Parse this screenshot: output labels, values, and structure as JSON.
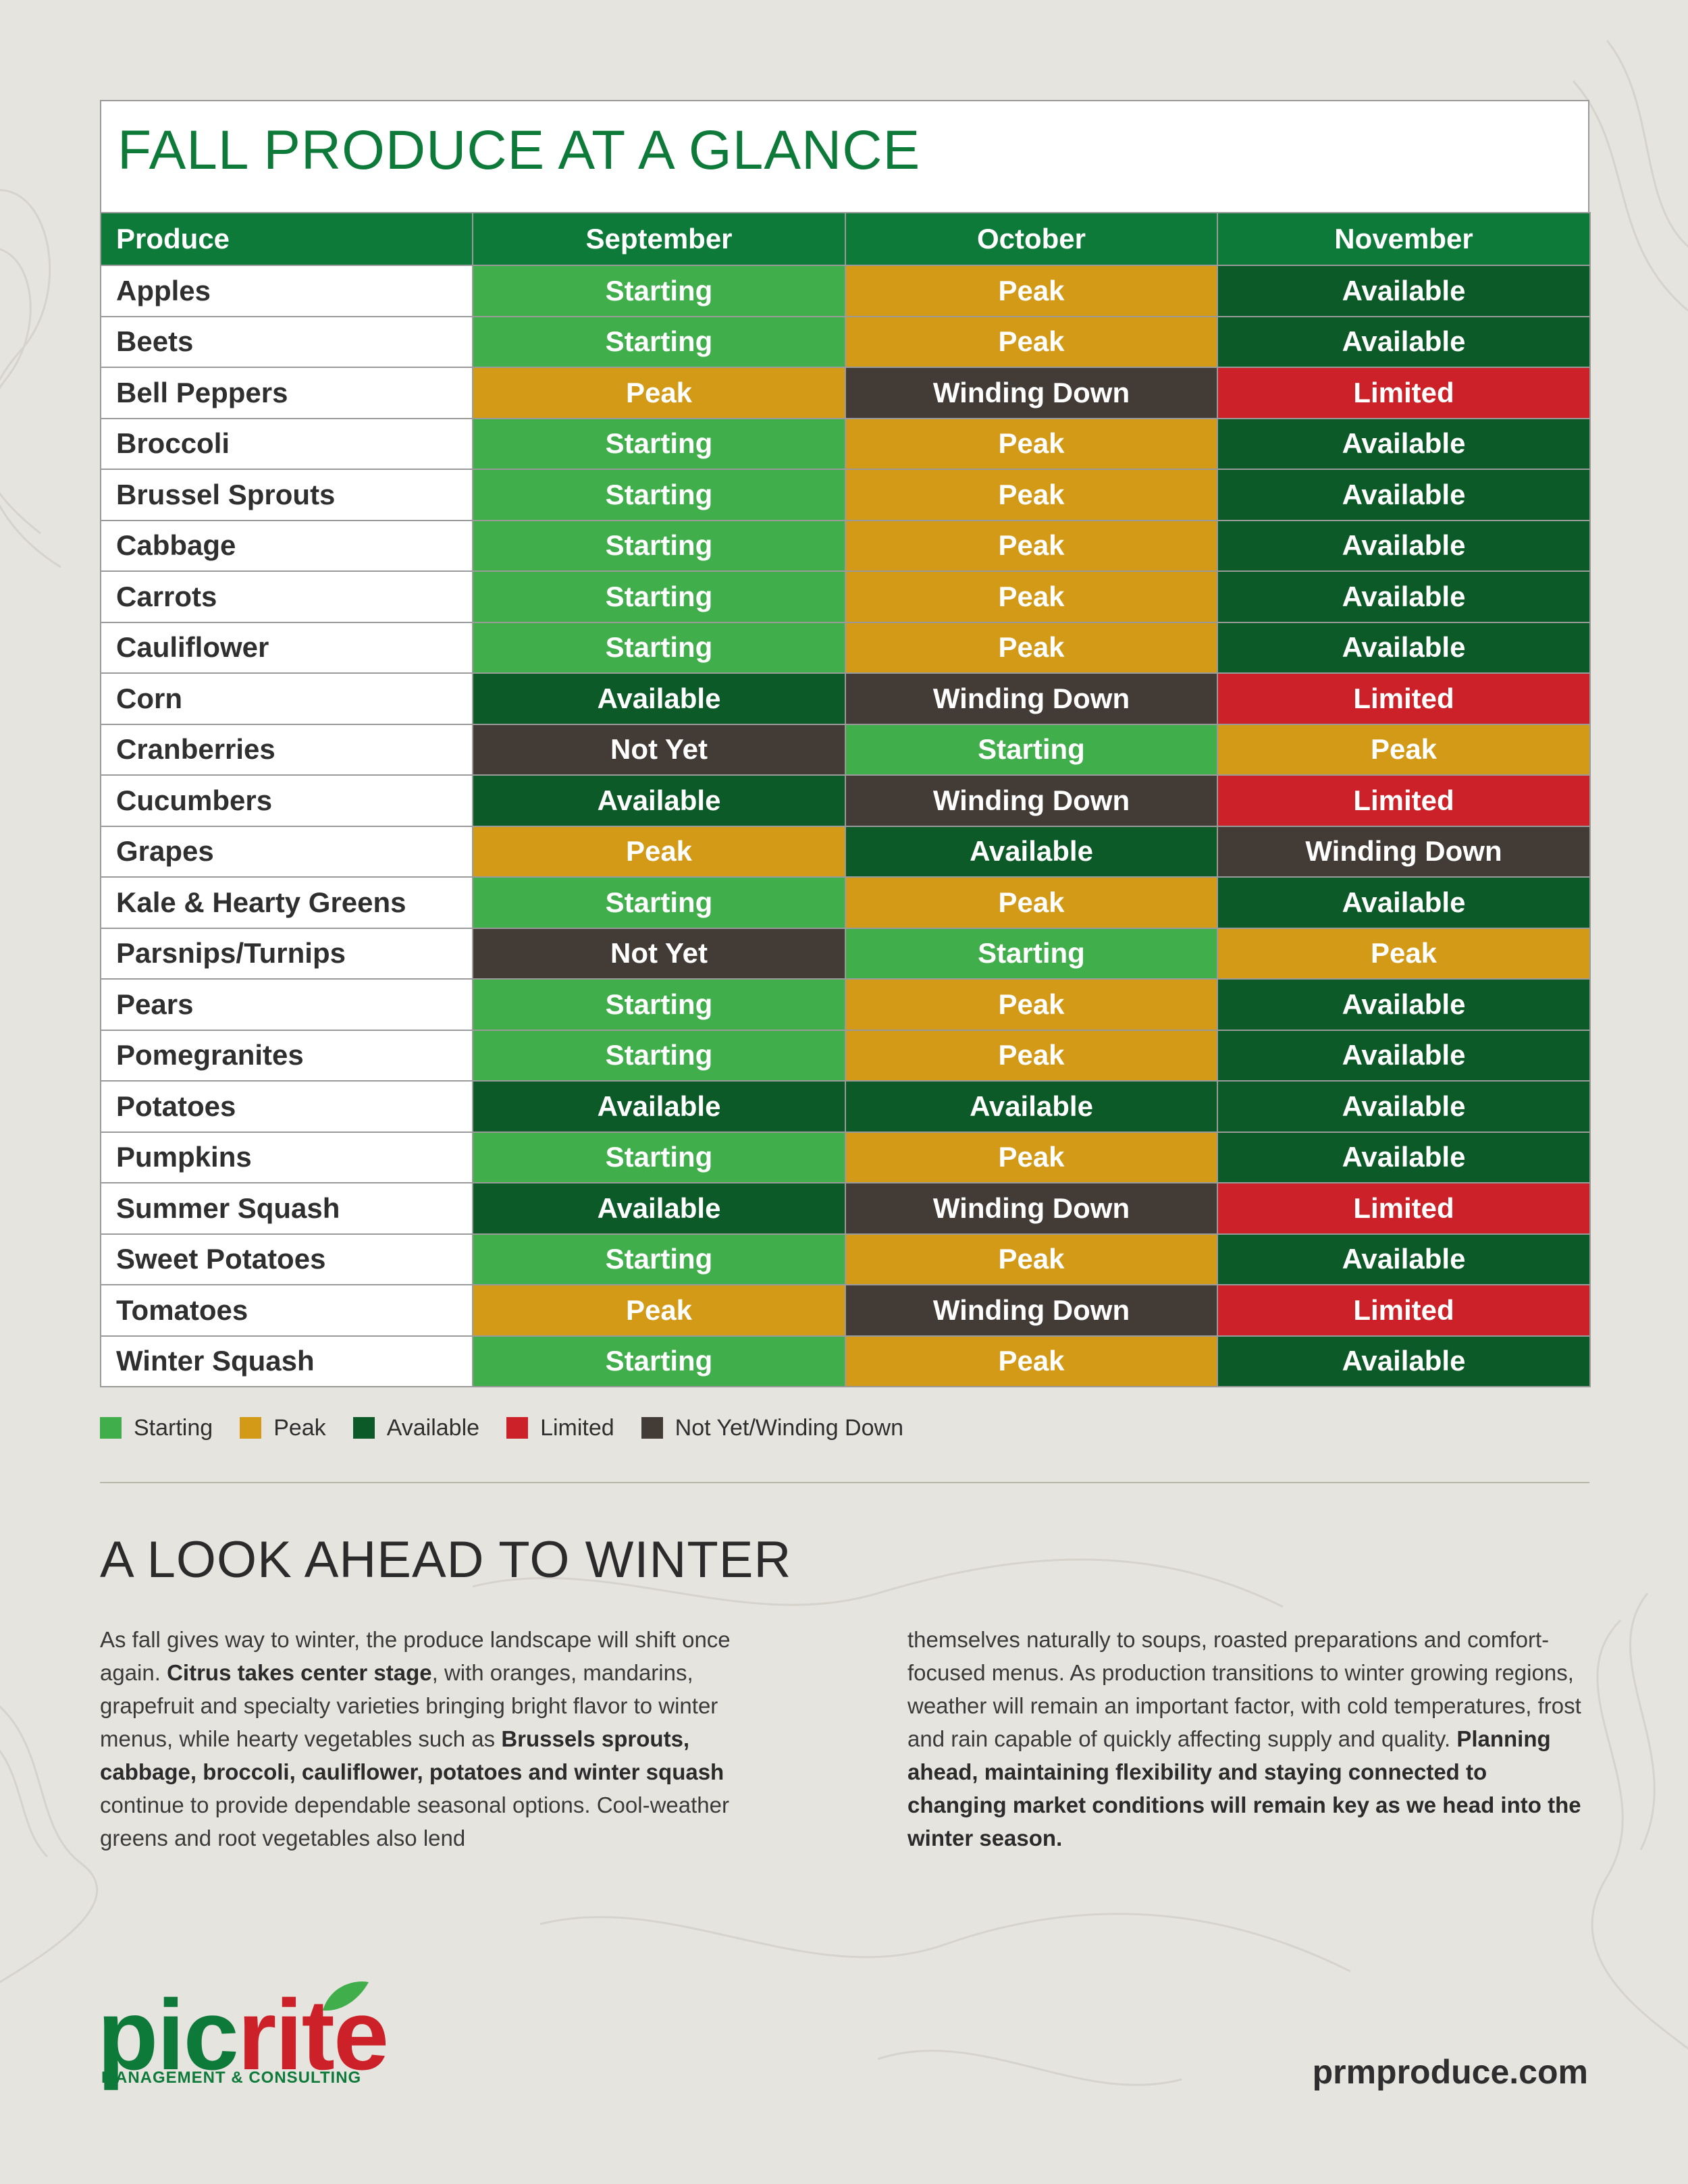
{
  "title": "FALL PRODUCE AT A GLANCE",
  "columns": [
    "Produce",
    "September",
    "October",
    "November"
  ],
  "rows": [
    {
      "name": "Apples",
      "sep": "Starting",
      "oct": "Peak",
      "nov": "Available"
    },
    {
      "name": "Beets",
      "sep": "Starting",
      "oct": "Peak",
      "nov": "Available"
    },
    {
      "name": "Bell Peppers",
      "sep": "Peak",
      "oct": "Winding Down",
      "nov": "Limited"
    },
    {
      "name": "Broccoli",
      "sep": "Starting",
      "oct": "Peak",
      "nov": "Available"
    },
    {
      "name": "Brussel Sprouts",
      "sep": "Starting",
      "oct": "Peak",
      "nov": "Available"
    },
    {
      "name": "Cabbage",
      "sep": "Starting",
      "oct": "Peak",
      "nov": "Available"
    },
    {
      "name": "Carrots",
      "sep": "Starting",
      "oct": "Peak",
      "nov": "Available"
    },
    {
      "name": "Cauliflower",
      "sep": "Starting",
      "oct": "Peak",
      "nov": "Available"
    },
    {
      "name": "Corn",
      "sep": "Available",
      "oct": "Winding Down",
      "nov": "Limited"
    },
    {
      "name": "Cranberries",
      "sep": "Not Yet",
      "oct": "Starting",
      "nov": "Peak"
    },
    {
      "name": "Cucumbers",
      "sep": "Available",
      "oct": "Winding Down",
      "nov": "Limited"
    },
    {
      "name": "Grapes",
      "sep": "Peak",
      "oct": "Available",
      "nov": "Winding Down"
    },
    {
      "name": "Kale & Hearty Greens",
      "sep": "Starting",
      "oct": "Peak",
      "nov": "Available"
    },
    {
      "name": "Parsnips/Turnips",
      "sep": "Not Yet",
      "oct": "Starting",
      "nov": "Peak"
    },
    {
      "name": "Pears",
      "sep": "Starting",
      "oct": "Peak",
      "nov": "Available"
    },
    {
      "name": "Pomegranites",
      "sep": "Starting",
      "oct": "Peak",
      "nov": "Available"
    },
    {
      "name": "Potatoes",
      "sep": "Available",
      "oct": "Available",
      "nov": "Available"
    },
    {
      "name": "Pumpkins",
      "sep": "Starting",
      "oct": "Peak",
      "nov": "Available"
    },
    {
      "name": "Summer Squash",
      "sep": "Available",
      "oct": "Winding Down",
      "nov": "Limited"
    },
    {
      "name": "Sweet Potatoes",
      "sep": "Starting",
      "oct": "Peak",
      "nov": "Available"
    },
    {
      "name": "Tomatoes",
      "sep": "Peak",
      "oct": "Winding Down",
      "nov": "Limited"
    },
    {
      "name": "Winter Squash",
      "sep": "Starting",
      "oct": "Peak",
      "nov": "Available"
    }
  ],
  "status_colors": {
    "Starting": "#3fae4b",
    "Peak": "#d39a17",
    "Available": "#0b5a27",
    "Limited": "#cc2128",
    "Not Yet": "#433c36",
    "Winding Down": "#433c36"
  },
  "legend": [
    {
      "label": "Starting",
      "color": "#3fae4b"
    },
    {
      "label": "Peak",
      "color": "#d39a17"
    },
    {
      "label": "Available",
      "color": "#0b5a27"
    },
    {
      "label": "Limited",
      "color": "#cc2128"
    },
    {
      "label": "Not Yet/Winding Down",
      "color": "#433c36"
    }
  ],
  "winter": {
    "heading": "A LOOK AHEAD TO WINTER",
    "p1_a": "As fall gives way to winter, the produce landscape will shift once again. ",
    "p1_b": "Citrus takes center stage",
    "p1_c": ", with oranges, mandarins, grapefruit and specialty varieties bringing bright flavor to winter menus, while hearty vegetables such as ",
    "p1_d": "Brussels sprouts, cabbage, broccoli, cauliflower, potatoes and winter squash",
    "p1_e": " continue to provide dependable seasonal options. Cool-weather greens and root vegetables also lend",
    "p2_a": "themselves naturally to soups, roasted preparations and comfort-focused menus. As production transitions to winter growing regions, weather will remain an important factor, with cold temperatures, frost and rain capable of quickly affecting supply and quality. ",
    "p2_b": "Planning ahead, maintaining flexibility and staying connected to changing market conditions will remain key as we head into the winter season."
  },
  "footer": {
    "logo_green": "pic",
    "logo_red": "rite",
    "logo_sub": "MANAGEMENT & CONSULTING",
    "website": "prmproduce.com"
  },
  "brand_colors": {
    "green": "#0d7a3a",
    "red": "#cc2128"
  }
}
